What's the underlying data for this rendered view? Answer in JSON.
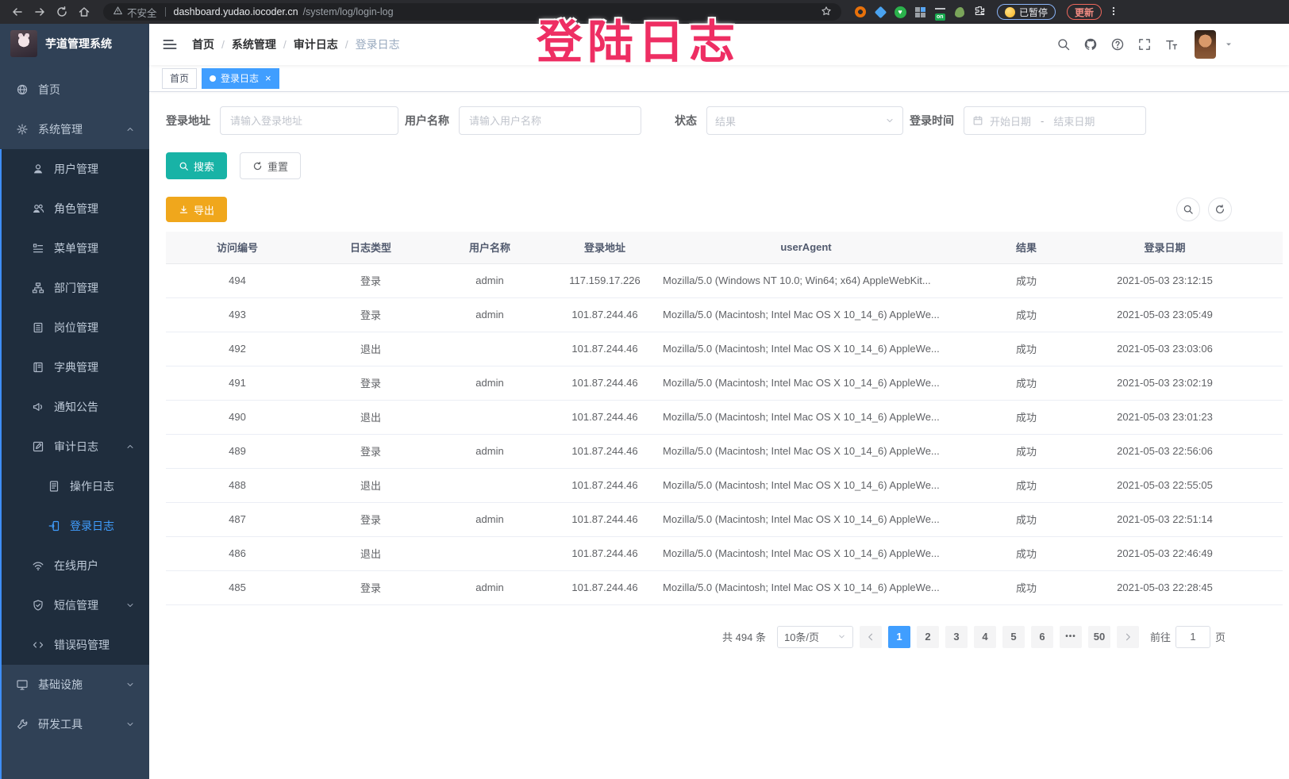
{
  "browser": {
    "security_label": "不安全",
    "url_domain": "dashboard.yudao.iocoder.cn",
    "url_path": "/system/log/login-log",
    "extensions": [
      "orange-circle",
      "blue-gem",
      "green-heart",
      "blue-grid",
      "list-on",
      "plant",
      "puzzle"
    ],
    "paused_badge": "已暂停",
    "update_button": "更新"
  },
  "overlay_text": "登陆日志",
  "sidebar": {
    "logo_title": "芋道管理系统",
    "items": [
      {
        "key": "home",
        "label": "首页",
        "icon": "globe",
        "level": "root"
      },
      {
        "key": "system-mgmt",
        "label": "系统管理",
        "icon": "gear",
        "level": "root",
        "chevron": "up"
      },
      {
        "key": "user-mgmt",
        "label": "用户管理",
        "icon": "user",
        "level": "sub"
      },
      {
        "key": "role-mgmt",
        "label": "角色管理",
        "icon": "users",
        "level": "sub"
      },
      {
        "key": "menu-mgmt",
        "label": "菜单管理",
        "icon": "menu-list",
        "level": "sub"
      },
      {
        "key": "dept-mgmt",
        "label": "部门管理",
        "icon": "tree",
        "level": "sub"
      },
      {
        "key": "post-mgmt",
        "label": "岗位管理",
        "icon": "badge",
        "level": "sub"
      },
      {
        "key": "dict-mgmt",
        "label": "字典管理",
        "icon": "book",
        "level": "sub"
      },
      {
        "key": "notice",
        "label": "通知公告",
        "icon": "megaphone",
        "level": "sub"
      },
      {
        "key": "audit-log",
        "label": "审计日志",
        "icon": "edit-square",
        "level": "sub",
        "chevron": "up"
      },
      {
        "key": "operate-log",
        "label": "操作日志",
        "icon": "doc",
        "level": "subsub"
      },
      {
        "key": "login-log",
        "label": "登录日志",
        "icon": "login",
        "level": "subsub",
        "active": true
      },
      {
        "key": "online-user",
        "label": "在线用户",
        "icon": "online",
        "level": "sub"
      },
      {
        "key": "sms-mgmt",
        "label": "短信管理",
        "icon": "shield",
        "level": "sub",
        "chevron": "down"
      },
      {
        "key": "error-code",
        "label": "错误码管理",
        "icon": "code",
        "level": "sub"
      },
      {
        "key": "infrastructure",
        "label": "基础设施",
        "icon": "monitor",
        "level": "root",
        "chevron": "down"
      },
      {
        "key": "dev-tools",
        "label": "研发工具",
        "icon": "wrench",
        "level": "root",
        "chevron": "down"
      }
    ]
  },
  "navbar": {
    "breadcrumb": [
      "首页",
      "系统管理",
      "审计日志",
      "登录日志"
    ],
    "icons": [
      "search",
      "github",
      "question",
      "fullscreen",
      "font-size"
    ]
  },
  "tags": [
    {
      "key": "home",
      "label": "首页",
      "active": false,
      "closable": false
    },
    {
      "key": "login-log",
      "label": "登录日志",
      "active": true,
      "closable": true
    }
  ],
  "filters": {
    "address_label": "登录地址",
    "address_placeholder": "请输入登录地址",
    "username_label": "用户名称",
    "username_placeholder": "请输入用户名称",
    "status_label": "状态",
    "status_placeholder": "结果",
    "time_label": "登录时间",
    "start_placeholder": "开始日期",
    "range_separator": "-",
    "end_placeholder": "结束日期",
    "search_label": "搜索",
    "reset_label": "重置"
  },
  "toolbar": {
    "export_label": "导出",
    "panel_icons": [
      "search",
      "refresh"
    ]
  },
  "table": {
    "headers": [
      "访问编号",
      "日志类型",
      "用户名称",
      "登录地址",
      "userAgent",
      "结果",
      "登录日期"
    ],
    "rows": [
      {
        "id": "494",
        "type": "登录",
        "user": "admin",
        "ip": "117.159.17.226",
        "ua": "Mozilla/5.0 (Windows NT 10.0; Win64; x64) AppleWebKit...",
        "result": "成功",
        "date": "2021-05-03 23:12:15"
      },
      {
        "id": "493",
        "type": "登录",
        "user": "admin",
        "ip": "101.87.244.46",
        "ua": "Mozilla/5.0 (Macintosh; Intel Mac OS X 10_14_6) AppleWe...",
        "result": "成功",
        "date": "2021-05-03 23:05:49"
      },
      {
        "id": "492",
        "type": "退出",
        "user": "",
        "ip": "101.87.244.46",
        "ua": "Mozilla/5.0 (Macintosh; Intel Mac OS X 10_14_6) AppleWe...",
        "result": "成功",
        "date": "2021-05-03 23:03:06"
      },
      {
        "id": "491",
        "type": "登录",
        "user": "admin",
        "ip": "101.87.244.46",
        "ua": "Mozilla/5.0 (Macintosh; Intel Mac OS X 10_14_6) AppleWe...",
        "result": "成功",
        "date": "2021-05-03 23:02:19"
      },
      {
        "id": "490",
        "type": "退出",
        "user": "",
        "ip": "101.87.244.46",
        "ua": "Mozilla/5.0 (Macintosh; Intel Mac OS X 10_14_6) AppleWe...",
        "result": "成功",
        "date": "2021-05-03 23:01:23"
      },
      {
        "id": "489",
        "type": "登录",
        "user": "admin",
        "ip": "101.87.244.46",
        "ua": "Mozilla/5.0 (Macintosh; Intel Mac OS X 10_14_6) AppleWe...",
        "result": "成功",
        "date": "2021-05-03 22:56:06"
      },
      {
        "id": "488",
        "type": "退出",
        "user": "",
        "ip": "101.87.244.46",
        "ua": "Mozilla/5.0 (Macintosh; Intel Mac OS X 10_14_6) AppleWe...",
        "result": "成功",
        "date": "2021-05-03 22:55:05"
      },
      {
        "id": "487",
        "type": "登录",
        "user": "admin",
        "ip": "101.87.244.46",
        "ua": "Mozilla/5.0 (Macintosh; Intel Mac OS X 10_14_6) AppleWe...",
        "result": "成功",
        "date": "2021-05-03 22:51:14"
      },
      {
        "id": "486",
        "type": "退出",
        "user": "",
        "ip": "101.87.244.46",
        "ua": "Mozilla/5.0 (Macintosh; Intel Mac OS X 10_14_6) AppleWe...",
        "result": "成功",
        "date": "2021-05-03 22:46:49"
      },
      {
        "id": "485",
        "type": "登录",
        "user": "admin",
        "ip": "101.87.244.46",
        "ua": "Mozilla/5.0 (Macintosh; Intel Mac OS X 10_14_6) AppleWe...",
        "result": "成功",
        "date": "2021-05-03 22:28:45"
      }
    ]
  },
  "pagination": {
    "total_label": "共 494 条",
    "page_size_label": "10条/页",
    "pages": [
      "1",
      "2",
      "3",
      "4",
      "5",
      "6",
      "•••",
      "50"
    ],
    "active_page": "1",
    "jump_prefix": "前往",
    "jump_value": "1",
    "jump_suffix": "页"
  },
  "colors": {
    "primary": "#409eff",
    "search_teal": "#18b3a6",
    "export_orange": "#f0a71c",
    "sidebar_bg": "#304156",
    "submenu_bg": "#1f2d3d",
    "overlay_pink": "#ee2e63"
  }
}
